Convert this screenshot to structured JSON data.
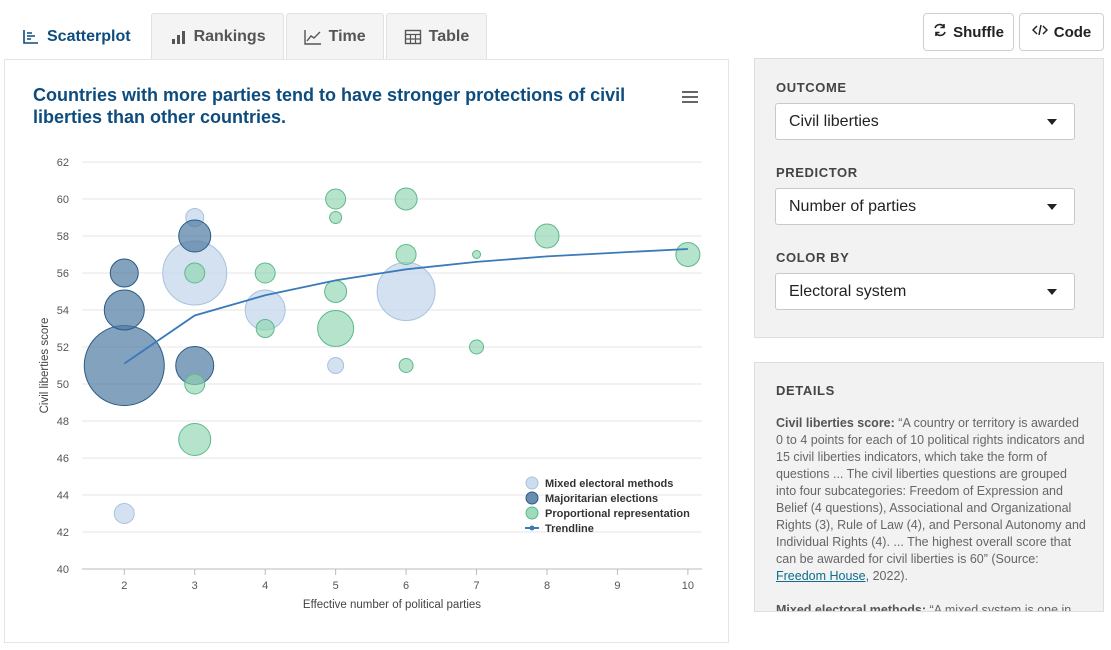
{
  "tabs": [
    {
      "label": "Scatterplot",
      "icon": "scatterplot-icon",
      "active": true
    },
    {
      "label": "Rankings",
      "icon": "bar-chart-icon",
      "active": false
    },
    {
      "label": "Time",
      "icon": "line-chart-icon",
      "active": false
    },
    {
      "label": "Table",
      "icon": "table-icon",
      "active": false
    }
  ],
  "toolbar": {
    "shuffle_label": "Shuffle",
    "code_label": "Code"
  },
  "controls": {
    "outcome": {
      "label": "OUTCOME",
      "value": "Civil liberties"
    },
    "predictor": {
      "label": "PREDICTOR",
      "value": "Number of parties"
    },
    "color_by": {
      "label": "COLOR BY",
      "value": "Electoral system"
    }
  },
  "details": {
    "heading": "DETAILS",
    "p1_term": "Civil liberties score:",
    "p1_text": "“A country or territory is awarded 0 to 4 points for each of 10 political rights indicators and 15 civil liberties indicators, which take the form of questions ... The civil liberties questions are grouped into four subcategories: Freedom of Expression and Belief (4 questions), Associational and Organizational Rights (3), Rule of Law (4), and Personal Autonomy and Individual Rights (4). ... The highest overall score that can be awarded for civil liberties is 60” (Source: ",
    "p1_link": "Freedom House,",
    "p1_end": " 2022).",
    "p2_term": "Mixed electoral methods:",
    "p2_text": "“A mixed system is one in"
  },
  "colors": {
    "mixed": "#c5d7eb",
    "majoritarian": "#4f7aa3",
    "proportional": "#8fd4b0",
    "trendline": "#3a7ab8",
    "title": "#0d4c7e"
  },
  "chart_data": {
    "type": "scatter",
    "title": "Countries with more parties tend to have stronger protections of civil liberties than other countries.",
    "xlabel": "Effective number of political parties",
    "ylabel": "Civil liberties score",
    "xlim": [
      1.4,
      10.2
    ],
    "ylim": [
      40,
      62
    ],
    "xticks": [
      2,
      3,
      4,
      5,
      6,
      7,
      8,
      9,
      10
    ],
    "yticks": [
      40,
      42,
      44,
      46,
      48,
      50,
      52,
      54,
      56,
      58,
      60,
      62
    ],
    "grid": true,
    "legend_position": "bottom-right",
    "series": [
      {
        "name": "Mixed electoral methods",
        "color_key": "mixed",
        "marker": "circle",
        "points": [
          {
            "x": 2,
            "y": 43,
            "size": 1.0
          },
          {
            "x": 3,
            "y": 59,
            "size": 0.9
          },
          {
            "x": 3,
            "y": 56,
            "size": 3.2
          },
          {
            "x": 4,
            "y": 54,
            "size": 2.0
          },
          {
            "x": 5,
            "y": 51,
            "size": 0.8
          },
          {
            "x": 6,
            "y": 55,
            "size": 2.9
          }
        ]
      },
      {
        "name": "Majoritarian elections",
        "color_key": "majoritarian",
        "marker": "circle",
        "points": [
          {
            "x": 2,
            "y": 51,
            "size": 4.0
          },
          {
            "x": 2,
            "y": 54,
            "size": 2.0
          },
          {
            "x": 2,
            "y": 56,
            "size": 1.4
          },
          {
            "x": 3,
            "y": 58,
            "size": 1.6
          },
          {
            "x": 3,
            "y": 51,
            "size": 1.9
          }
        ]
      },
      {
        "name": "Proportional representation",
        "color_key": "proportional",
        "marker": "circle",
        "points": [
          {
            "x": 3,
            "y": 56,
            "size": 1.0
          },
          {
            "x": 3,
            "y": 50,
            "size": 1.0
          },
          {
            "x": 3,
            "y": 47,
            "size": 1.6
          },
          {
            "x": 4,
            "y": 56,
            "size": 1.0
          },
          {
            "x": 4,
            "y": 53,
            "size": 0.9
          },
          {
            "x": 5,
            "y": 60,
            "size": 1.0
          },
          {
            "x": 5,
            "y": 59,
            "size": 0.6
          },
          {
            "x": 5,
            "y": 55,
            "size": 1.1
          },
          {
            "x": 5,
            "y": 53,
            "size": 1.8
          },
          {
            "x": 6,
            "y": 60,
            "size": 1.1
          },
          {
            "x": 6,
            "y": 57,
            "size": 1.0
          },
          {
            "x": 6,
            "y": 51,
            "size": 0.7
          },
          {
            "x": 7,
            "y": 57,
            "size": 0.4
          },
          {
            "x": 7,
            "y": 52,
            "size": 0.7
          },
          {
            "x": 8,
            "y": 58,
            "size": 1.2
          },
          {
            "x": 10,
            "y": 57,
            "size": 1.2
          }
        ]
      },
      {
        "name": "Trendline",
        "color_key": "trendline",
        "marker": "line",
        "points": [
          {
            "x": 2,
            "y": 51.1
          },
          {
            "x": 3,
            "y": 53.7
          },
          {
            "x": 4,
            "y": 54.8
          },
          {
            "x": 5,
            "y": 55.6
          },
          {
            "x": 6,
            "y": 56.2
          },
          {
            "x": 7,
            "y": 56.6
          },
          {
            "x": 8,
            "y": 56.9
          },
          {
            "x": 9,
            "y": 57.1
          },
          {
            "x": 10,
            "y": 57.3
          }
        ]
      }
    ]
  }
}
